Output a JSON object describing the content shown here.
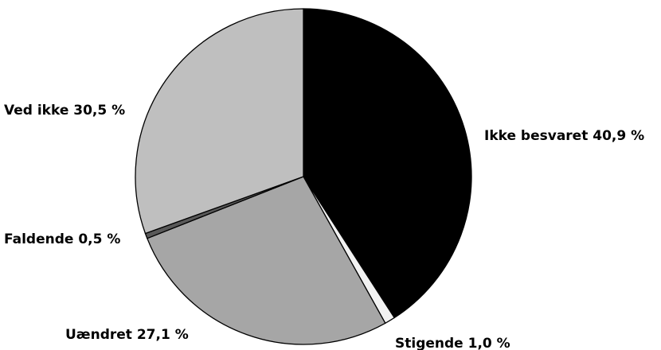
{
  "chart_data": {
    "type": "pie",
    "title": "",
    "start_angle_deg": 0,
    "direction": "clockwise",
    "slices": [
      {
        "label": "Ikke besvaret",
        "value_text": "40,9 %",
        "value": 40.9,
        "color": "#000000"
      },
      {
        "label": "Stigende",
        "value_text": "1,0 %",
        "value": 1.0,
        "color": "#f2f2f2"
      },
      {
        "label": "Uændret",
        "value_text": "27,1 %",
        "value": 27.1,
        "color": "#a6a6a6"
      },
      {
        "label": "Faldende",
        "value_text": "0,5 %",
        "value": 0.5,
        "color": "#595959"
      },
      {
        "label": "Ved ikke",
        "value_text": "30,5 %",
        "value": 30.5,
        "color": "#bfbfbf"
      }
    ]
  }
}
